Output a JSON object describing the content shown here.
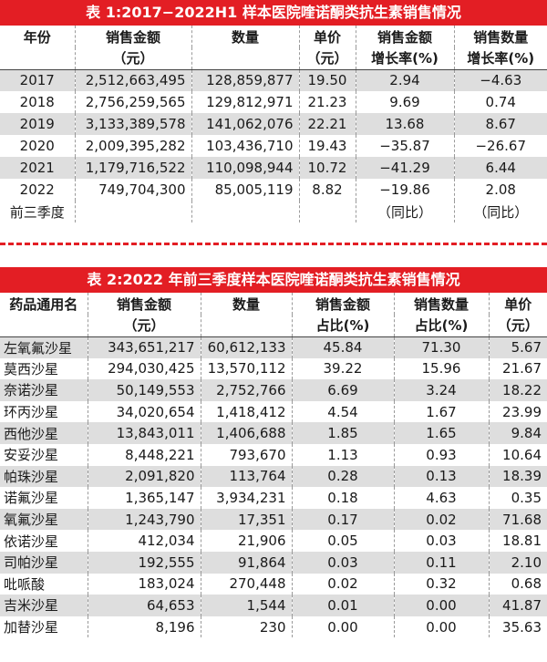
{
  "table1": {
    "title": "表 1:2017−2022H1 样本医院喹诺酮类抗生素销售情况",
    "headers": [
      {
        "line1": "年份",
        "line2": ""
      },
      {
        "line1": "销售金额",
        "line2": "（元）"
      },
      {
        "line1": "数量",
        "line2": ""
      },
      {
        "line1": "单价",
        "line2": "（元）"
      },
      {
        "line1": "销售金额",
        "line2": "增长率(%)"
      },
      {
        "line1": "销售数量",
        "line2": "增长率(%)"
      }
    ],
    "rows": [
      {
        "year": "2017",
        "sales": "2,512,663,495",
        "qty": "128,859,877",
        "price": "19.50",
        "sales_growth": "2.94",
        "qty_growth": "−4.63"
      },
      {
        "year": "2018",
        "sales": "2,756,259,565",
        "qty": "129,812,971",
        "price": "21.23",
        "sales_growth": "9.69",
        "qty_growth": "0.74"
      },
      {
        "year": "2019",
        "sales": "3,133,389,578",
        "qty": "141,062,076",
        "price": "22.21",
        "sales_growth": "13.68",
        "qty_growth": "8.67"
      },
      {
        "year": "2020",
        "sales": "2,009,395,282",
        "qty": "103,436,710",
        "price": "19.43",
        "sales_growth": "−35.87",
        "qty_growth": "−26.67"
      },
      {
        "year": "2021",
        "sales": "1,179,716,522",
        "qty": "110,098,944",
        "price": "10.72",
        "sales_growth": "−41.29",
        "qty_growth": "6.44"
      }
    ],
    "last_row": {
      "year": "2022",
      "year_note": "前三季度",
      "sales": "749,704,300",
      "qty": "85,005,119",
      "price": "8.82",
      "sales_growth": "−19.86",
      "sales_growth_note": "（同比）",
      "qty_growth": "2.08",
      "qty_growth_note": "（同比）"
    }
  },
  "table2": {
    "title": "表 2:2022 年前三季度样本医院喹诺酮类抗生素销售情况",
    "headers": [
      {
        "line1": "药品通用名",
        "line2": ""
      },
      {
        "line1": "销售金额",
        "line2": "（元）"
      },
      {
        "line1": "数量",
        "line2": ""
      },
      {
        "line1": "销售金额",
        "line2": "占比(%)"
      },
      {
        "line1": "销售数量",
        "line2": "占比(%)"
      },
      {
        "line1": "单价",
        "line2": "（元）"
      }
    ],
    "rows": [
      {
        "name": "左氧氟沙星",
        "sales": "343,651,217",
        "qty": "60,612,133",
        "sales_share": "45.84",
        "qty_share": "71.30",
        "price": "5.67"
      },
      {
        "name": "莫西沙星",
        "sales": "294,030,425",
        "qty": "13,570,112",
        "sales_share": "39.22",
        "qty_share": "15.96",
        "price": "21.67"
      },
      {
        "name": "奈诺沙星",
        "sales": "50,149,553",
        "qty": "2,752,766",
        "sales_share": "6.69",
        "qty_share": "3.24",
        "price": "18.22"
      },
      {
        "name": "环丙沙星",
        "sales": "34,020,654",
        "qty": "1,418,412",
        "sales_share": "4.54",
        "qty_share": "1.67",
        "price": "23.99"
      },
      {
        "name": "西他沙星",
        "sales": "13,843,011",
        "qty": "1,406,688",
        "sales_share": "1.85",
        "qty_share": "1.65",
        "price": "9.84"
      },
      {
        "name": "安妥沙星",
        "sales": "8,448,221",
        "qty": "793,670",
        "sales_share": "1.13",
        "qty_share": "0.93",
        "price": "10.64"
      },
      {
        "name": "帕珠沙星",
        "sales": "2,091,820",
        "qty": "113,764",
        "sales_share": "0.28",
        "qty_share": "0.13",
        "price": "18.39"
      },
      {
        "name": "诺氟沙星",
        "sales": "1,365,147",
        "qty": "3,934,231",
        "sales_share": "0.18",
        "qty_share": "4.63",
        "price": "0.35"
      },
      {
        "name": "氧氟沙星",
        "sales": "1,243,790",
        "qty": "17,351",
        "sales_share": "0.17",
        "qty_share": "0.02",
        "price": "71.68"
      },
      {
        "name": "依诺沙星",
        "sales": "412,034",
        "qty": "21,906",
        "sales_share": "0.05",
        "qty_share": "0.03",
        "price": "18.81"
      },
      {
        "name": "司帕沙星",
        "sales": "192,555",
        "qty": "91,864",
        "sales_share": "0.03",
        "qty_share": "0.11",
        "price": "2.10"
      },
      {
        "name": "吡哌酸",
        "sales": "183,024",
        "qty": "270,448",
        "sales_share": "0.02",
        "qty_share": "0.32",
        "price": "0.68"
      },
      {
        "name": "吉米沙星",
        "sales": "64,653",
        "qty": "1,544",
        "sales_share": "0.01",
        "qty_share": "0.00",
        "price": "41.87"
      },
      {
        "name": "加替沙星",
        "sales": "8,196",
        "qty": "230",
        "sales_share": "0.00",
        "qty_share": "0.00",
        "price": "35.63"
      }
    ]
  }
}
